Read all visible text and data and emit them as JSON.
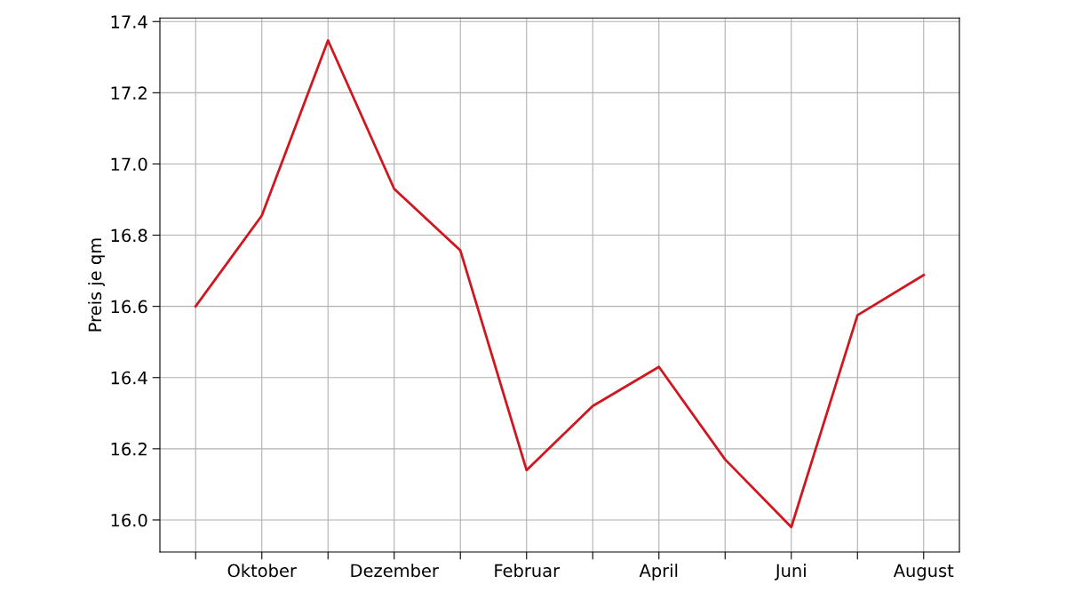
{
  "chart_data": {
    "type": "line",
    "ylabel": "Preis je qm",
    "categories": [
      null,
      "Oktober",
      null,
      "Dezember",
      null,
      "Februar",
      null,
      "April",
      null,
      "Juni",
      null,
      "August"
    ],
    "series": [
      {
        "color": "#d0161e",
        "values": [
          16.6,
          16.855,
          17.347,
          16.93,
          16.757,
          16.14,
          16.32,
          16.43,
          16.17,
          15.98,
          16.575,
          16.688
        ]
      }
    ],
    "ylim": [
      15.91,
      17.41
    ],
    "yticks": [
      {
        "value": 16,
        "label": "16.0"
      },
      16.2,
      16.4,
      16.6,
      16.8,
      {
        "value": 17,
        "label": "17.0"
      },
      17.2,
      17.4
    ],
    "grid": true,
    "marker": "none",
    "line_style": "solid"
  }
}
